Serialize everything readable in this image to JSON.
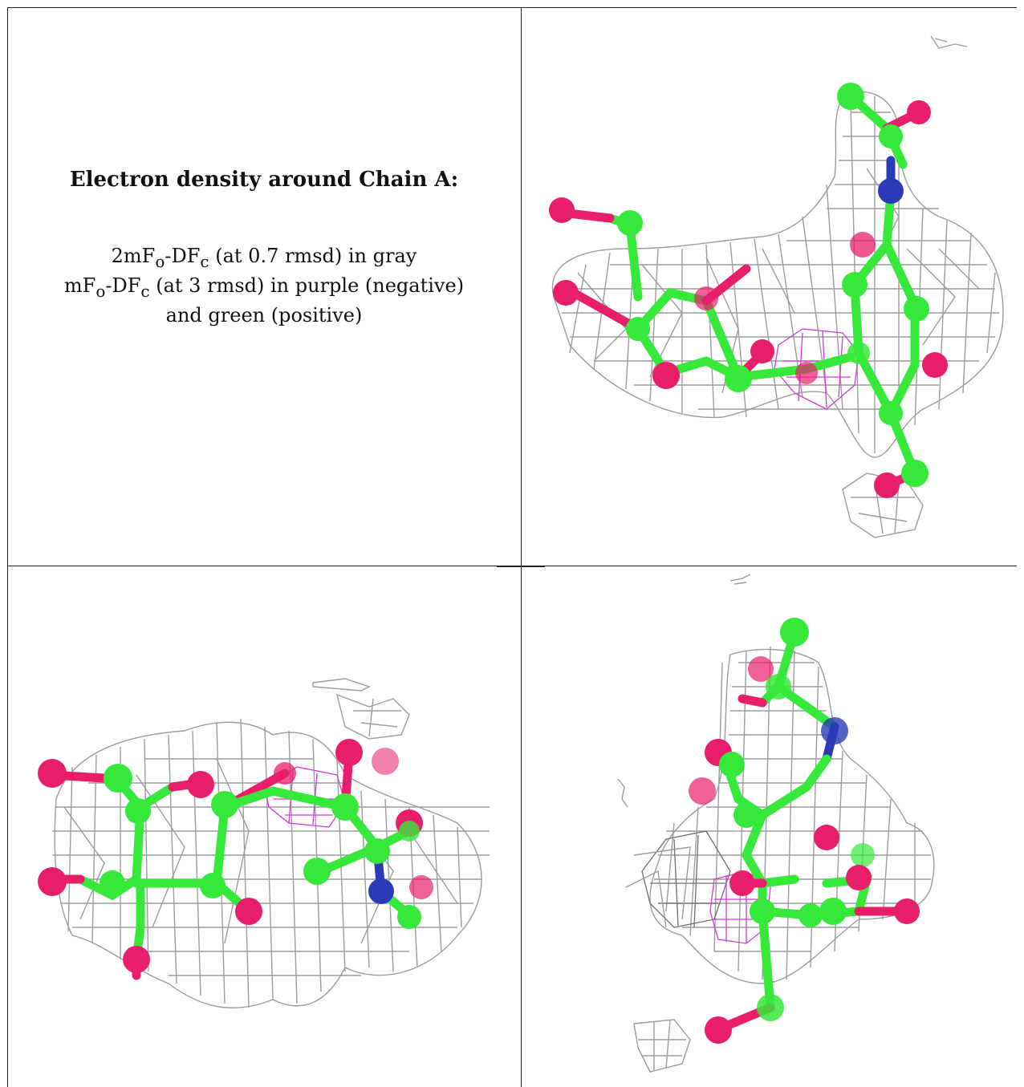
{
  "caption": {
    "title": "Electron density around Chain A:",
    "line1_a": "2mF",
    "line1_sub1": "o",
    "line1_b": "-DF",
    "line1_sub2": "c",
    "line1_c": " (at 0.7 rmsd) in gray",
    "line2_a": "mF",
    "line2_sub1": "o",
    "line2_b": "-DF",
    "line2_sub2": "c",
    "line2_c": " (at 3 rmsd) in purple (negative)",
    "line3": "and green (positive)"
  },
  "colors": {
    "carbon": "#36e83a",
    "oxygen": "#e81e6b",
    "nitrogen": "#2b3bb8",
    "density_2fofc": "#9c9c9c",
    "density_negative": "#d23ad8"
  },
  "panels": [
    "density-view-1",
    "density-view-2",
    "density-view-3"
  ]
}
